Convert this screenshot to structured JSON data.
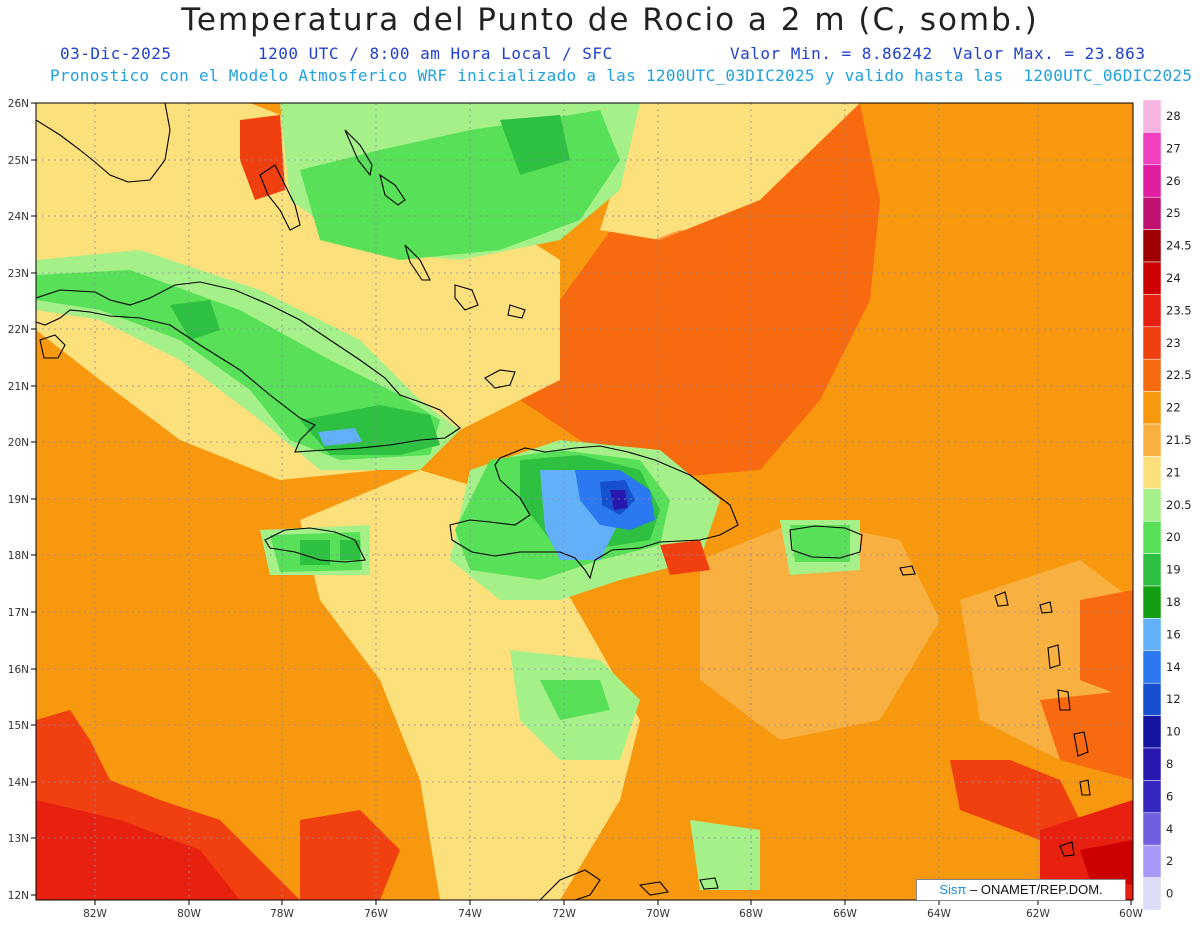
{
  "header": {
    "title": "Temperatura del Punto de Rocio a 2 m (C, somb.)",
    "date": "03-Dic-2025",
    "time": "1200 UTC / 8:00 am Hora Local / SFC",
    "min_max": "Valor Min. = 8.86242  Valor Max. = 23.863",
    "model_info": "Pronostico con el Modelo Atmosferico WRF inicializado a las 1200UTC_03DIC2025 y valido hasta las  1200UTC_06DIC2025"
  },
  "map": {
    "lat_labels": [
      "26N",
      "25N",
      "24N",
      "23N",
      "22N",
      "21N",
      "20N",
      "19N",
      "18N",
      "17N",
      "16N",
      "15N",
      "14N",
      "13N",
      "12N"
    ],
    "lon_labels": [
      "82W",
      "80W",
      "78W",
      "76W",
      "74W",
      "72W",
      "70W",
      "68W",
      "66W",
      "64W",
      "62W",
      "60W"
    ],
    "min_value": "8.86242",
    "max_value": "23.863"
  },
  "legend": {
    "labels": [
      "28",
      "27",
      "26",
      "25",
      "24.5",
      "24",
      "23.5",
      "23",
      "22.5",
      "22",
      "21.5",
      "21",
      "20.5",
      "20",
      "19",
      "18",
      "16",
      "14",
      "12",
      "10",
      "8",
      "6",
      "4",
      "2",
      "0"
    ],
    "colors": [
      "#f8b4e0",
      "#f040c0",
      "#e01ca0",
      "#c01070",
      "#a00000",
      "#cc0000",
      "#e82010",
      "#f04010",
      "#f86a10",
      "#f8980e",
      "#f8b040",
      "#fce07c",
      "#a6f08a",
      "#58e058",
      "#2ec040",
      "#12a012",
      "#62b0f8",
      "#2c78f0",
      "#1650d0",
      "#1414a0",
      "#2818b0",
      "#3428c0",
      "#7060e0",
      "#a898f8",
      "#dcdcf8"
    ]
  },
  "credit": {
    "sis": "Sisπ",
    "org": "– ONAMET/REP.DOM."
  }
}
